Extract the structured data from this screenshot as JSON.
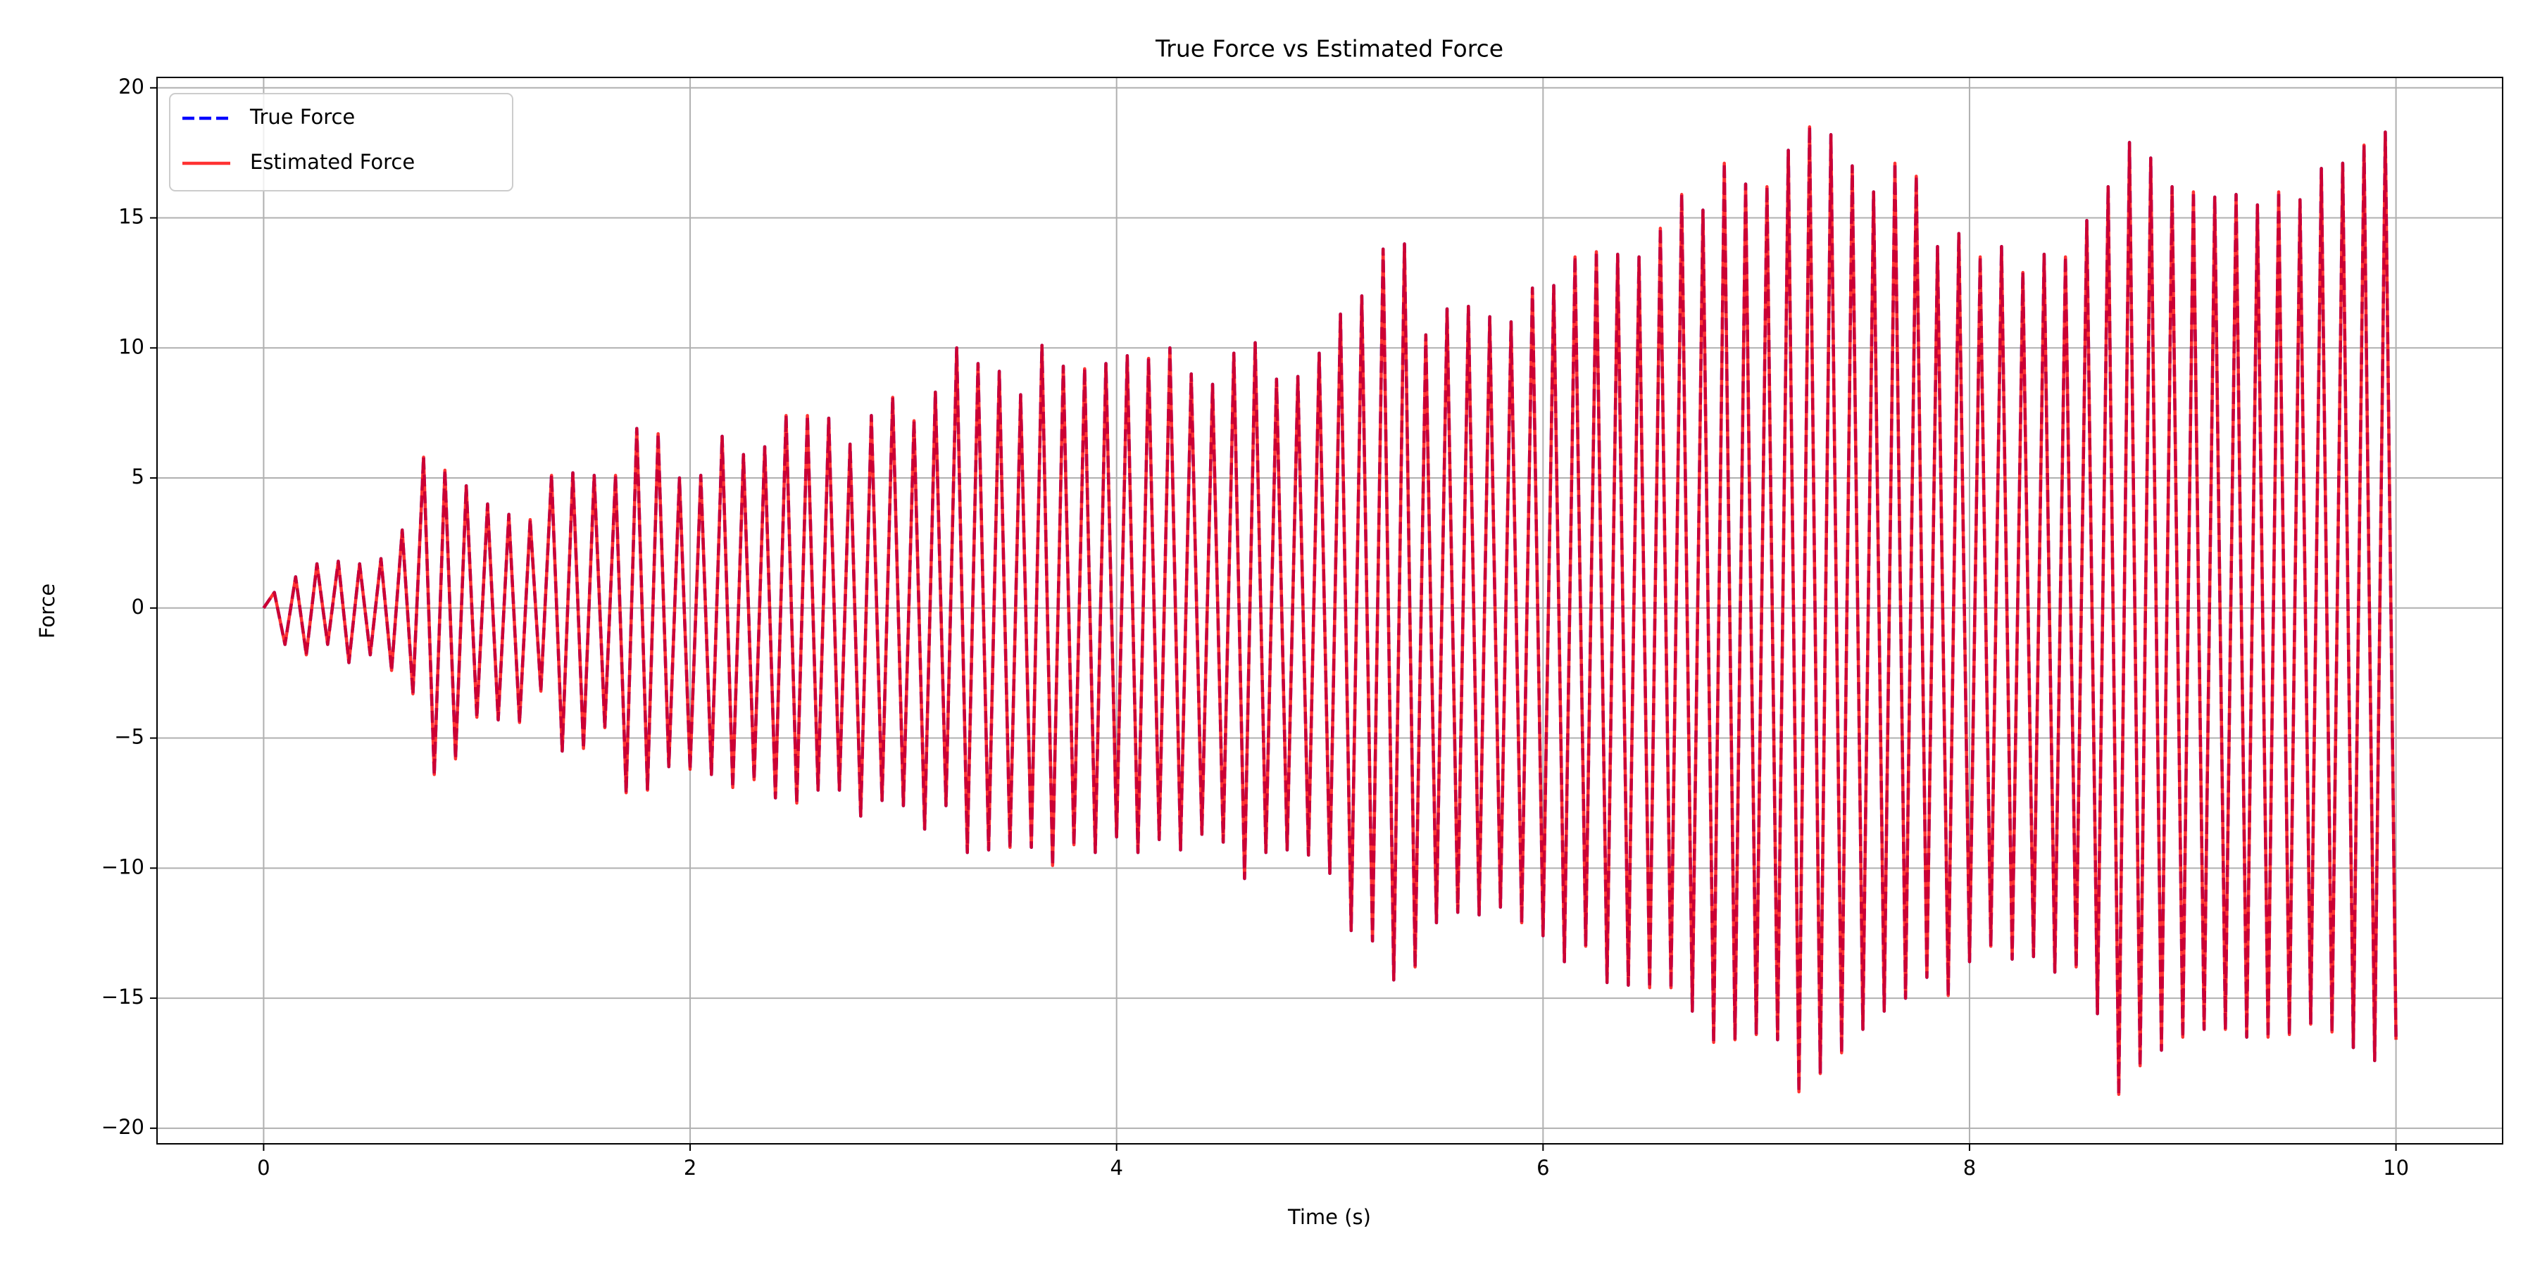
{
  "chart_data": {
    "type": "line",
    "title": "True Force vs Estimated Force",
    "xlabel": "Time (s)",
    "ylabel": "Force",
    "x": [
      0,
      0.05,
      0.1,
      0.15,
      0.2,
      0.25,
      0.3,
      0.35,
      0.4,
      0.45,
      0.5,
      0.55,
      0.6,
      0.65,
      0.7,
      0.75,
      0.8,
      0.85,
      0.9,
      0.95,
      1,
      1.05,
      1.1,
      1.15,
      1.2,
      1.25,
      1.3,
      1.35,
      1.4,
      1.45,
      1.5,
      1.55,
      1.6,
      1.65,
      1.7,
      1.75,
      1.8,
      1.85,
      1.9,
      1.95,
      2,
      2.05,
      2.1,
      2.15,
      2.2,
      2.25,
      2.3,
      2.35,
      2.4,
      2.45,
      2.5,
      2.55,
      2.6,
      2.65,
      2.7,
      2.75,
      2.8,
      2.85,
      2.9,
      2.95,
      3,
      3.05,
      3.1,
      3.15,
      3.2,
      3.25,
      3.3,
      3.35,
      3.4,
      3.45,
      3.5,
      3.55,
      3.6,
      3.65,
      3.7,
      3.75,
      3.8,
      3.85,
      3.9,
      3.95,
      4,
      4.05,
      4.1,
      4.15,
      4.2,
      4.25,
      4.3,
      4.35,
      4.4,
      4.45,
      4.5,
      4.55,
      4.6,
      4.65,
      4.7,
      4.75,
      4.8,
      4.85,
      4.9,
      4.95,
      5,
      5.05,
      5.1,
      5.15,
      5.2,
      5.25,
      5.3,
      5.35,
      5.4,
      5.45,
      5.5,
      5.55,
      5.6,
      5.65,
      5.7,
      5.75,
      5.8,
      5.85,
      5.9,
      5.95,
      6,
      6.05,
      6.1,
      6.15,
      6.2,
      6.25,
      6.3,
      6.35,
      6.4,
      6.45,
      6.5,
      6.55,
      6.6,
      6.65,
      6.7,
      6.75,
      6.8,
      6.85,
      6.9,
      6.95,
      7,
      7.05,
      7.1,
      7.15,
      7.2,
      7.25,
      7.3,
      7.35,
      7.4,
      7.45,
      7.5,
      7.55,
      7.6,
      7.65,
      7.7,
      7.75,
      7.8,
      7.85,
      7.9,
      7.95,
      8,
      8.05,
      8.1,
      8.15,
      8.2,
      8.25,
      8.3,
      8.35,
      8.4,
      8.45,
      8.5,
      8.55,
      8.6,
      8.65,
      8.7,
      8.75,
      8.8,
      8.85,
      8.9,
      8.95,
      9,
      9.05,
      9.1,
      9.15,
      9.2,
      9.25,
      9.3,
      9.35,
      9.4,
      9.45,
      9.5,
      9.55,
      9.6,
      9.65,
      9.7,
      9.75,
      9.8,
      9.85,
      9.9,
      9.95,
      10
    ],
    "series": [
      {
        "name": "True Force",
        "color": "#0000ff",
        "dash": true,
        "values": [
          0,
          0.6,
          -1.4,
          1.2,
          -1.8,
          1.7,
          -1.4,
          1.8,
          -2.1,
          1.7,
          -1.8,
          1.9,
          -2.4,
          3.0,
          -3.3,
          5.8,
          -6.4,
          5.3,
          -5.8,
          4.7,
          -4.2,
          4.0,
          -4.3,
          3.6,
          -4.4,
          3.4,
          -3.2,
          5.1,
          -5.5,
          5.2,
          -5.4,
          5.1,
          -4.6,
          5.1,
          -7.1,
          6.9,
          -7.0,
          6.7,
          -6.1,
          5.0,
          -6.2,
          5.1,
          -6.4,
          6.6,
          -6.9,
          5.9,
          -6.6,
          6.2,
          -7.3,
          7.4,
          -7.5,
          7.4,
          -7.0,
          7.3,
          -7.0,
          6.3,
          -8.0,
          7.4,
          -7.4,
          8.1,
          -7.6,
          7.2,
          -8.5,
          8.3,
          -7.6,
          10.0,
          -9.4,
          9.4,
          -9.3,
          9.1,
          -9.2,
          8.2,
          -9.2,
          10.1,
          -9.9,
          9.3,
          -9.1,
          9.2,
          -9.4,
          9.4,
          -8.8,
          9.7,
          -9.4,
          9.6,
          -8.9,
          10.0,
          -9.3,
          9.0,
          -8.7,
          8.6,
          -9.0,
          9.8,
          -10.4,
          10.2,
          -9.4,
          8.8,
          -9.3,
          8.9,
          -9.5,
          9.8,
          -10.2,
          11.3,
          -12.4,
          12.0,
          -12.8,
          13.8,
          -14.3,
          14.0,
          -13.8,
          10.5,
          -12.1,
          11.5,
          -11.7,
          11.6,
          -11.8,
          11.2,
          -11.5,
          11.0,
          -12.1,
          12.3,
          -12.6,
          12.4,
          -13.6,
          13.5,
          -13.0,
          13.7,
          -14.4,
          13.6,
          -14.5,
          13.5,
          -14.6,
          14.6,
          -14.6,
          15.9,
          -15.5,
          15.3,
          -16.7,
          17.1,
          -16.6,
          16.3,
          -16.4,
          16.2,
          -16.6,
          17.6,
          -18.6,
          18.5,
          -17.9,
          18.2,
          -17.1,
          17.0,
          -16.2,
          16.0,
          -15.5,
          17.1,
          -15.0,
          16.6,
          -14.2,
          13.9,
          -14.9,
          14.4,
          -13.6,
          13.5,
          -13.0,
          13.9,
          -13.5,
          12.9,
          -13.4,
          13.6,
          -14.0,
          13.5,
          -13.8,
          14.9,
          -15.6,
          16.2,
          -18.7,
          17.9,
          -17.6,
          17.3,
          -17.0,
          16.2,
          -16.5,
          16.0,
          -16.2,
          15.8,
          -16.2,
          15.9,
          -16.5,
          15.5,
          -16.5,
          16.0,
          -16.4,
          15.7,
          -16.0,
          16.9,
          -16.3,
          17.1,
          -16.9,
          17.8,
          -17.4,
          18.3,
          -16.6
        ]
      },
      {
        "name": "Estimated Force",
        "color": "#ff0000",
        "dash": false,
        "values": [
          0,
          0.6,
          -1.4,
          1.2,
          -1.8,
          1.7,
          -1.4,
          1.8,
          -2.1,
          1.7,
          -1.8,
          1.9,
          -2.4,
          3.0,
          -3.3,
          5.8,
          -6.4,
          5.3,
          -5.8,
          4.7,
          -4.2,
          4.0,
          -4.3,
          3.6,
          -4.4,
          3.4,
          -3.2,
          5.1,
          -5.5,
          5.2,
          -5.4,
          5.1,
          -4.6,
          5.1,
          -7.1,
          6.9,
          -7.0,
          6.7,
          -6.1,
          5.0,
          -6.2,
          5.1,
          -6.4,
          6.6,
          -6.9,
          5.9,
          -6.6,
          6.2,
          -7.3,
          7.4,
          -7.5,
          7.4,
          -7.0,
          7.3,
          -7.0,
          6.3,
          -8.0,
          7.4,
          -7.4,
          8.1,
          -7.6,
          7.2,
          -8.5,
          8.3,
          -7.6,
          10.0,
          -9.4,
          9.4,
          -9.3,
          9.1,
          -9.2,
          8.2,
          -9.2,
          10.1,
          -9.9,
          9.3,
          -9.1,
          9.2,
          -9.4,
          9.4,
          -8.8,
          9.7,
          -9.4,
          9.6,
          -8.9,
          10.0,
          -9.3,
          9.0,
          -8.7,
          8.6,
          -9.0,
          9.8,
          -10.4,
          10.2,
          -9.4,
          8.8,
          -9.3,
          8.9,
          -9.5,
          9.8,
          -10.2,
          11.3,
          -12.4,
          12.0,
          -12.8,
          13.8,
          -14.3,
          14.0,
          -13.8,
          10.5,
          -12.1,
          11.5,
          -11.7,
          11.6,
          -11.8,
          11.2,
          -11.5,
          11.0,
          -12.1,
          12.3,
          -12.6,
          12.4,
          -13.6,
          13.5,
          -13.0,
          13.7,
          -14.4,
          13.6,
          -14.5,
          13.5,
          -14.6,
          14.6,
          -14.6,
          15.9,
          -15.5,
          15.3,
          -16.7,
          17.1,
          -16.6,
          16.3,
          -16.4,
          16.2,
          -16.6,
          17.6,
          -18.6,
          18.5,
          -17.9,
          18.2,
          -17.1,
          17.0,
          -16.2,
          16.0,
          -15.5,
          17.1,
          -15.0,
          16.6,
          -14.2,
          13.9,
          -14.9,
          14.4,
          -13.6,
          13.5,
          -13.0,
          13.9,
          -13.5,
          12.9,
          -13.4,
          13.6,
          -14.0,
          13.5,
          -13.8,
          14.9,
          -15.6,
          16.2,
          -18.7,
          17.9,
          -17.6,
          17.3,
          -17.0,
          16.2,
          -16.5,
          16.0,
          -16.2,
          15.8,
          -16.2,
          15.9,
          -16.5,
          15.5,
          -16.5,
          16.0,
          -16.4,
          15.7,
          -16.0,
          16.9,
          -16.3,
          17.1,
          -16.9,
          17.8,
          -17.4,
          18.3,
          -16.6
        ]
      }
    ],
    "xlim": [
      -0.5,
      10.5
    ],
    "xticks": [
      0,
      2,
      4,
      6,
      8,
      10
    ],
    "ylim": [
      -20.6,
      20.4
    ],
    "yticks": [
      {
        "value": -20,
        "label": "−20"
      },
      {
        "value": -15,
        "label": "−15"
      },
      {
        "value": -10,
        "label": "−10"
      },
      {
        "value": -5,
        "label": "−5"
      },
      0,
      5,
      10,
      15,
      20
    ],
    "grid": true,
    "legend": "upper left"
  }
}
